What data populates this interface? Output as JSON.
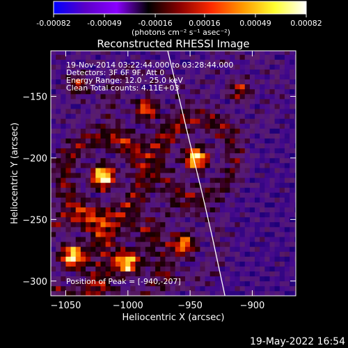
{
  "colorbar": {
    "ticks": [
      "-0.00082",
      "-0.00049",
      "-0.00016",
      "0.00016",
      "0.00049",
      "0.00082"
    ],
    "tick_values": [
      -0.00082,
      -0.00049,
      -0.00016,
      0.00016,
      0.00049,
      0.00082
    ],
    "range": [
      -0.00082,
      0.00082
    ],
    "units": "(photons cm⁻² s⁻¹ asec⁻²)",
    "colors": [
      "#0000ff",
      "#5a00c8",
      "#8a00ff",
      "#000000",
      "#8b0000",
      "#ff2a00",
      "#ff9a00",
      "#ffff30",
      "#ffffff"
    ]
  },
  "chart_data": {
    "type": "heatmap",
    "title": "Reconstructed RHESSI Image",
    "xlabel": "Heliocentric X (arcsec)",
    "ylabel": "Heliocentric Y (arcsec)",
    "xlim": [
      -1062,
      -865
    ],
    "ylim": [
      -312,
      -113
    ],
    "x_ticks": [
      -1050,
      -1000,
      -950,
      -900
    ],
    "x_tick_labels": [
      "−1050",
      "−1000",
      "−950",
      "−900"
    ],
    "y_ticks": [
      -150,
      -200,
      -250,
      -300
    ],
    "y_tick_labels": [
      "−150",
      "−200",
      "−250",
      "−300"
    ],
    "annotations": [
      "19-Nov-2014 03:22:44.000 to 03:28:44.000",
      "Detectors: 3F 6F 9F, Att 0",
      "Energy Range: 12.0 - 25.0 keV",
      "Clean    Total counts: 4.11E+03"
    ],
    "peak_label": "Position of Peak = [-940,-207]",
    "peak": [
      -940,
      -207
    ],
    "limb": [
      [
        -968,
        -113
      ],
      [
        -952,
        -180
      ],
      [
        -940,
        -230
      ],
      [
        -932,
        -265
      ],
      [
        -922,
        -312
      ]
    ],
    "sources": [
      {
        "x": -1020,
        "y": -215,
        "s": 24,
        "a": 1.0
      },
      {
        "x": -945,
        "y": -200,
        "s": 22,
        "a": 0.95
      },
      {
        "x": -1045,
        "y": -280,
        "s": 22,
        "a": 0.9
      },
      {
        "x": -1000,
        "y": -285,
        "s": 20,
        "a": 0.85
      },
      {
        "x": -985,
        "y": -160,
        "s": 18,
        "a": 0.65
      },
      {
        "x": -955,
        "y": -270,
        "s": 18,
        "a": 0.75
      },
      {
        "x": -910,
        "y": -145,
        "s": 18,
        "a": 0.5
      },
      {
        "x": -1040,
        "y": -140,
        "s": 16,
        "a": 0.5
      }
    ]
  },
  "footer": {
    "timestamp": "19-May-2022 16:54"
  }
}
